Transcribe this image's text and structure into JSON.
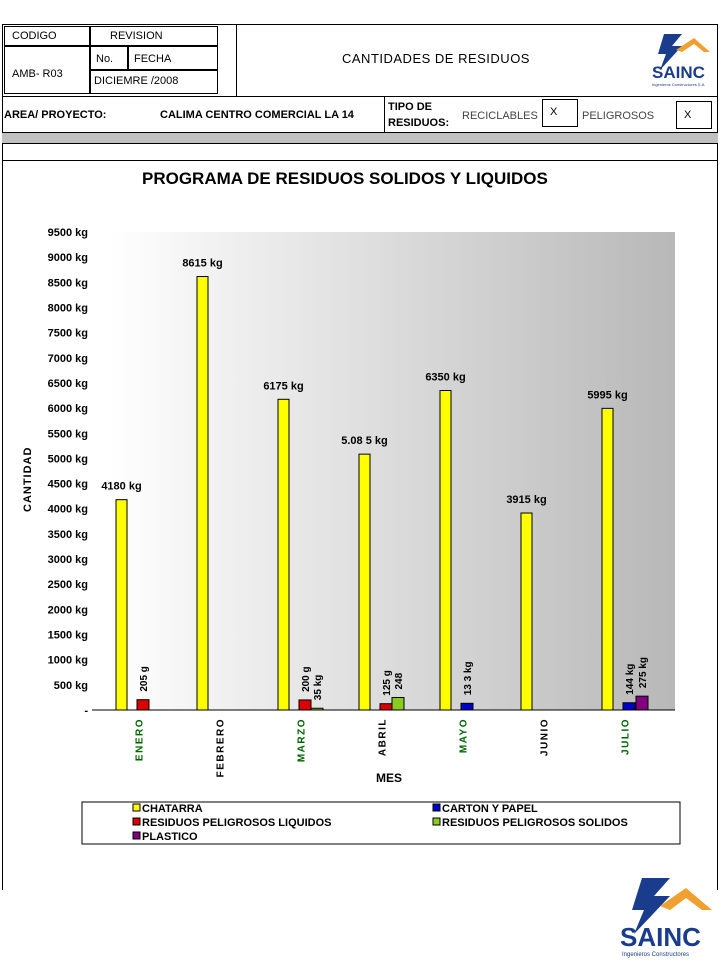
{
  "header": {
    "codigo_label": "CODIGO",
    "codigo_value": "AMB- R03",
    "revision_label": "REVISION",
    "no_label": "No.",
    "fecha_label": "FECHA",
    "fecha_value": "DICIEMRE /2008",
    "title": "CANTIDADES DE RESIDUOS",
    "logo_text": "SAINC",
    "logo_subtext": "Ingenieros Constructores S.A."
  },
  "project": {
    "area_label": "AREA/ PROYECTO:",
    "area_value": "CALIMA CENTRO COMERCIAL LA 14",
    "tipo_label_1": "TIPO DE",
    "tipo_label_2": "RESIDUOS:",
    "reciclables_label": "RECICLABLES",
    "reciclables_mark": "X",
    "peligrosos_label": "PELIGROSOS",
    "peligrosos_mark": "X"
  },
  "footer_logo": {
    "text": "SAINC",
    "subtext": "Ingenieros Constructores"
  },
  "chart_data": {
    "type": "bar",
    "title": "PROGRAMA DE RESIDUOS SOLIDOS Y LIQUIDOS",
    "xlabel": "MES",
    "ylabel": "CANTIDAD",
    "ylim": [
      0,
      9500
    ],
    "yticks": [
      "-",
      "500 kg",
      "1000 kg",
      "1500 kg",
      "2000 kg",
      "2500 kg",
      "3000 kg",
      "3500 kg",
      "4000 kg",
      "4500 kg",
      "5000 kg",
      "5500 kg",
      "6000 kg",
      "6500 kg",
      "7000 kg",
      "7500 kg",
      "8000 kg",
      "8500 kg",
      "9000 kg",
      "9500 kg"
    ],
    "categories": [
      "ENERO",
      "FEBRERO",
      "MARZO",
      "ABRIL",
      "MAYO",
      "JUNIO",
      "JULIO"
    ],
    "legend_placement": "bottom",
    "series": [
      {
        "name": "CHATARRA",
        "color": "#ffff00",
        "values": [
          4180,
          8615,
          6175,
          5085,
          6350,
          3915,
          5995
        ],
        "labels": [
          "4180 kg",
          "8615 kg",
          "6175 kg",
          "5.08 5 kg",
          "6350 kg",
          "3915 kg",
          "5995 kg"
        ]
      },
      {
        "name": "CARTON Y PAPEL",
        "color": "#0000cc",
        "values": [
          0,
          0,
          0,
          0,
          133,
          0,
          144
        ],
        "labels": [
          "",
          "",
          "",
          "",
          "13 3 kg",
          "",
          "144 kg"
        ]
      },
      {
        "name": "RESIDUOS PELIGROSOS LIQUIDOS",
        "color": "#dd0000",
        "values": [
          205,
          0,
          200,
          125,
          0,
          0,
          0
        ],
        "labels": [
          "205 g",
          "",
          "200 g",
          "125 g",
          "",
          "",
          ""
        ]
      },
      {
        "name": "RESIDUOS PELIGROSOS SOLIDOS",
        "color": "#88cc22",
        "values": [
          0,
          0,
          35,
          248,
          0,
          0,
          0
        ],
        "labels": [
          "",
          "",
          "35 kg",
          "248",
          "",
          "",
          ""
        ]
      },
      {
        "name": "PLASTICO",
        "color": "#800080",
        "values": [
          0,
          0,
          0,
          0,
          0,
          0,
          275
        ],
        "labels": [
          "",
          "",
          "",
          "",
          "",
          "",
          "275 kg"
        ]
      }
    ]
  }
}
